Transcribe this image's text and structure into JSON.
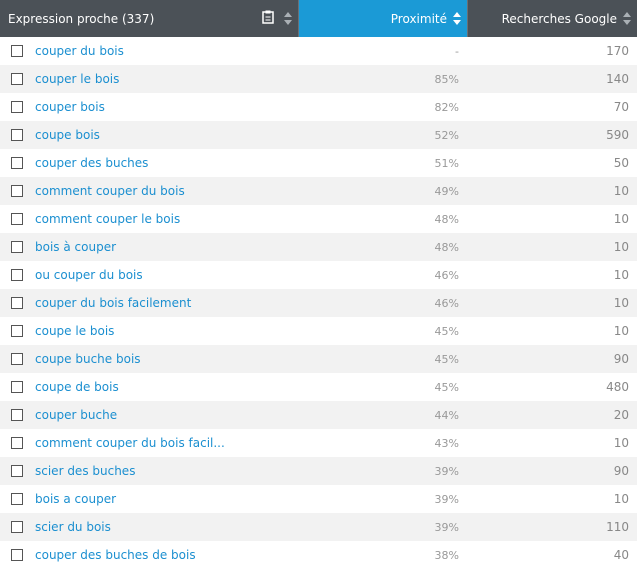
{
  "header": [
    "Expression proche (337)",
    "Proximité",
    "Recherches Google"
  ],
  "table": {
    "rows": [
      [
        "couper du bois",
        "-",
        170
      ],
      [
        "couper le bois",
        "85%",
        140
      ],
      [
        "couper bois",
        "82%",
        70
      ],
      [
        "coupe bois",
        "52%",
        590
      ],
      [
        "couper des buches",
        "51%",
        50
      ],
      [
        "comment couper du bois",
        "49%",
        10
      ],
      [
        "comment couper le bois",
        "48%",
        10
      ],
      [
        "bois à couper",
        "48%",
        10
      ],
      [
        "ou couper du bois",
        "46%",
        10
      ],
      [
        "couper du bois facilement",
        "46%",
        10
      ],
      [
        "coupe le bois",
        "45%",
        10
      ],
      [
        "coupe buche bois",
        "45%",
        90
      ],
      [
        "coupe de bois",
        "45%",
        480
      ],
      [
        "couper buche",
        "44%",
        20
      ],
      [
        "comment couper du bois facil...",
        "43%",
        10
      ],
      [
        "scier des buches",
        "39%",
        90
      ],
      [
        "bois a couper",
        "39%",
        10
      ],
      [
        "scier du bois",
        "39%",
        110
      ],
      [
        "couper des buches de bois",
        "38%",
        40
      ]
    ]
  }
}
